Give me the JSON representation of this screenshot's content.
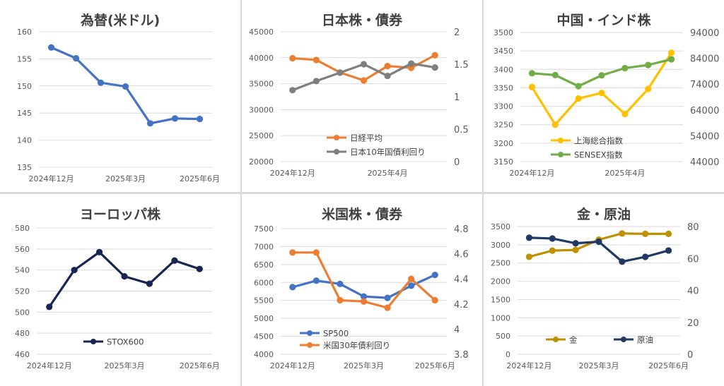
{
  "chart_data": [
    {
      "type": "line",
      "title": "為替(米ドル)",
      "x_labels": [
        "2024年12月",
        "2025年3月",
        "2025年6月"
      ],
      "ylim": [
        135,
        160
      ],
      "yticks": [
        135,
        140,
        145,
        150,
        155,
        160
      ],
      "grid": true,
      "legend": "none",
      "series": [
        {
          "axis": "left",
          "color": "#4472c4",
          "values": [
            157.1,
            155.1,
            150.6,
            149.9,
            143.1,
            144.0,
            143.9
          ]
        }
      ]
    },
    {
      "type": "line",
      "title": "日本株・債券",
      "x_labels": [
        "2024年12月",
        "2025年4月"
      ],
      "ylim": [
        20000,
        45000
      ],
      "yticks": [
        20000,
        25000,
        30000,
        35000,
        40000,
        45000
      ],
      "y2lim": [
        0,
        2
      ],
      "y2ticks": [
        "0",
        "0.5",
        "1",
        "1.5",
        "2"
      ],
      "grid": true,
      "legend": "bottom-center",
      "series": [
        {
          "name": "日経平均",
          "axis": "left",
          "color": "#ed7d31",
          "values": [
            39900,
            39570,
            37160,
            35620,
            38400,
            38050,
            40480
          ]
        },
        {
          "name": "日本10年国債利回り",
          "axis": "right",
          "color": "#7f7f7f",
          "values": [
            1.1,
            1.24,
            1.37,
            1.5,
            1.32,
            1.51,
            1.45
          ]
        }
      ]
    },
    {
      "type": "line",
      "title": "中国・インド株",
      "x_labels": [
        "2024年12月",
        "2025年4月"
      ],
      "ylim": [
        3150,
        3500
      ],
      "yticks": [
        3150,
        3200,
        3250,
        3300,
        3350,
        3400,
        3450,
        3500
      ],
      "y2lim": [
        44000,
        94000
      ],
      "y2ticks": [
        "44000",
        "54000",
        "64000",
        "74000",
        "84000",
        "94000"
      ],
      "grid": true,
      "legend": "bottom-center",
      "series": [
        {
          "name": "上海総合指数",
          "axis": "left",
          "color": "#ffc000",
          "values": [
            3352,
            3250,
            3321,
            3336,
            3279,
            3347,
            3445
          ]
        },
        {
          "name": "SENSEX指数",
          "axis": "right",
          "color": "#70ad47",
          "values": [
            78200,
            77500,
            73200,
            77400,
            80200,
            81400,
            83600
          ]
        }
      ]
    },
    {
      "type": "line",
      "title": "ヨーロッパ株",
      "x_labels": [
        "2024年12月",
        "2025年3月",
        "2025年6月"
      ],
      "ylim": [
        460,
        580
      ],
      "yticks": [
        460,
        480,
        500,
        520,
        540,
        560,
        580
      ],
      "grid": true,
      "legend": "bottom-center",
      "series": [
        {
          "name": "STOX600",
          "axis": "left",
          "color": "#172554",
          "values": [
            505,
            540,
            557,
            534,
            527,
            549,
            541
          ]
        }
      ]
    },
    {
      "type": "line",
      "title": "米国株・債券",
      "x_labels": [
        "2024年12月",
        "2025年3月",
        "2025年6月"
      ],
      "ylim": [
        4000,
        7500
      ],
      "yticks": [
        4000,
        4500,
        5000,
        5500,
        6000,
        6500,
        7000,
        7500
      ],
      "y2lim": [
        3.8,
        4.8
      ],
      "y2ticks": [
        "3.8",
        "4",
        "4.2",
        "4.4",
        "4.6",
        "4.8"
      ],
      "grid": true,
      "legend": "bottom-center",
      "series": [
        {
          "name": "SP500",
          "axis": "left",
          "color": "#4472c4",
          "values": [
            5870,
            6050,
            5960,
            5610,
            5570,
            5910,
            6210
          ]
        },
        {
          "name": "米国30年債利回り",
          "axis": "right",
          "color": "#ed7d31",
          "values": [
            4.61,
            4.61,
            4.23,
            4.22,
            4.17,
            4.4,
            4.23
          ]
        }
      ]
    },
    {
      "type": "line",
      "title": "金・原油",
      "x_labels": [
        "2024年12月",
        "2025年3月",
        "2025年6月"
      ],
      "ylim": [
        0,
        3500
      ],
      "yticks": [
        0,
        500,
        1000,
        1500,
        2000,
        2500,
        3000,
        3500
      ],
      "y2lim": [
        0,
        80
      ],
      "y2ticks": [
        "0",
        "20",
        "40",
        "60",
        "80"
      ],
      "grid": true,
      "legend": "bottom-center",
      "series": [
        {
          "name": "金",
          "axis": "left",
          "color": "#bf9000",
          "values": [
            2670,
            2840,
            2860,
            3140,
            3310,
            3300,
            3300
          ]
        },
        {
          "name": "原油",
          "axis": "right",
          "color": "#1f3864",
          "values": [
            73,
            72.5,
            69.5,
            70.5,
            58,
            61,
            65
          ]
        }
      ]
    }
  ]
}
